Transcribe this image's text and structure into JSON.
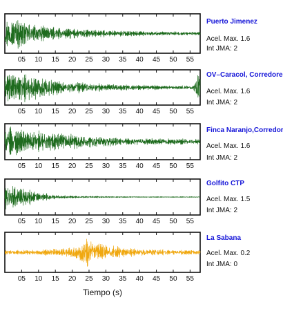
{
  "chart_data": {
    "type": "line",
    "xlabel": "Tiempo (s)",
    "xlim": [
      0,
      58
    ],
    "x_ticks": [
      5,
      10,
      15,
      20,
      25,
      30,
      35,
      40,
      45,
      50,
      55
    ],
    "x_tick_labels": [
      "05",
      "10",
      "15",
      "20",
      "25",
      "30",
      "35",
      "40",
      "45",
      "50",
      "55"
    ],
    "grid": false,
    "acel_prefix": "Acel. Max.",
    "int_prefix": "Int JMA:",
    "series": [
      {
        "name": "Puerto Jimenez",
        "acel_max": 1.6,
        "int_jma": 2,
        "color": "#1e6b1e",
        "envelope": {
          "x": [
            0,
            3,
            6,
            10,
            15,
            20,
            30,
            40,
            50,
            58
          ],
          "amp": [
            0.95,
            0.9,
            0.75,
            0.5,
            0.35,
            0.28,
            0.2,
            0.15,
            0.12,
            0.1
          ]
        }
      },
      {
        "name": "OV–Caracol, Corredores",
        "acel_max": 1.6,
        "int_jma": 2,
        "color": "#1e6b1e",
        "envelope": {
          "x": [
            0,
            5,
            10,
            15,
            20,
            30,
            40,
            50,
            56,
            57,
            58
          ],
          "amp": [
            0.95,
            0.95,
            0.8,
            0.55,
            0.4,
            0.25,
            0.18,
            0.12,
            0.15,
            0.98,
            0.98
          ]
        }
      },
      {
        "name": "Finca Naranjo,Corredores",
        "acel_max": 1.6,
        "int_jma": 2,
        "color": "#1e6b1e",
        "envelope": {
          "x": [
            0,
            5,
            10,
            15,
            20,
            25,
            30,
            40,
            50,
            58
          ],
          "amp": [
            0.95,
            0.8,
            0.75,
            0.6,
            0.5,
            0.4,
            0.35,
            0.25,
            0.2,
            0.2
          ]
        }
      },
      {
        "name": "Golfito CTP",
        "acel_max": 1.5,
        "int_jma": 2,
        "color": "#1e6b1e",
        "envelope": {
          "x": [
            0,
            3,
            6,
            10,
            15,
            20,
            30,
            40,
            50,
            58
          ],
          "amp": [
            0.95,
            0.9,
            0.6,
            0.3,
            0.15,
            0.08,
            0.05,
            0.03,
            0.03,
            0.03
          ]
        }
      },
      {
        "name": "La Sabana",
        "acel_max": 0.2,
        "int_jma": 0,
        "color": "#f0a810",
        "envelope": {
          "x": [
            0,
            10,
            18,
            22,
            24,
            26,
            30,
            35,
            40,
            50,
            58
          ],
          "amp": [
            0.12,
            0.15,
            0.25,
            0.55,
            0.98,
            0.7,
            0.45,
            0.3,
            0.2,
            0.15,
            0.12
          ]
        }
      }
    ]
  }
}
